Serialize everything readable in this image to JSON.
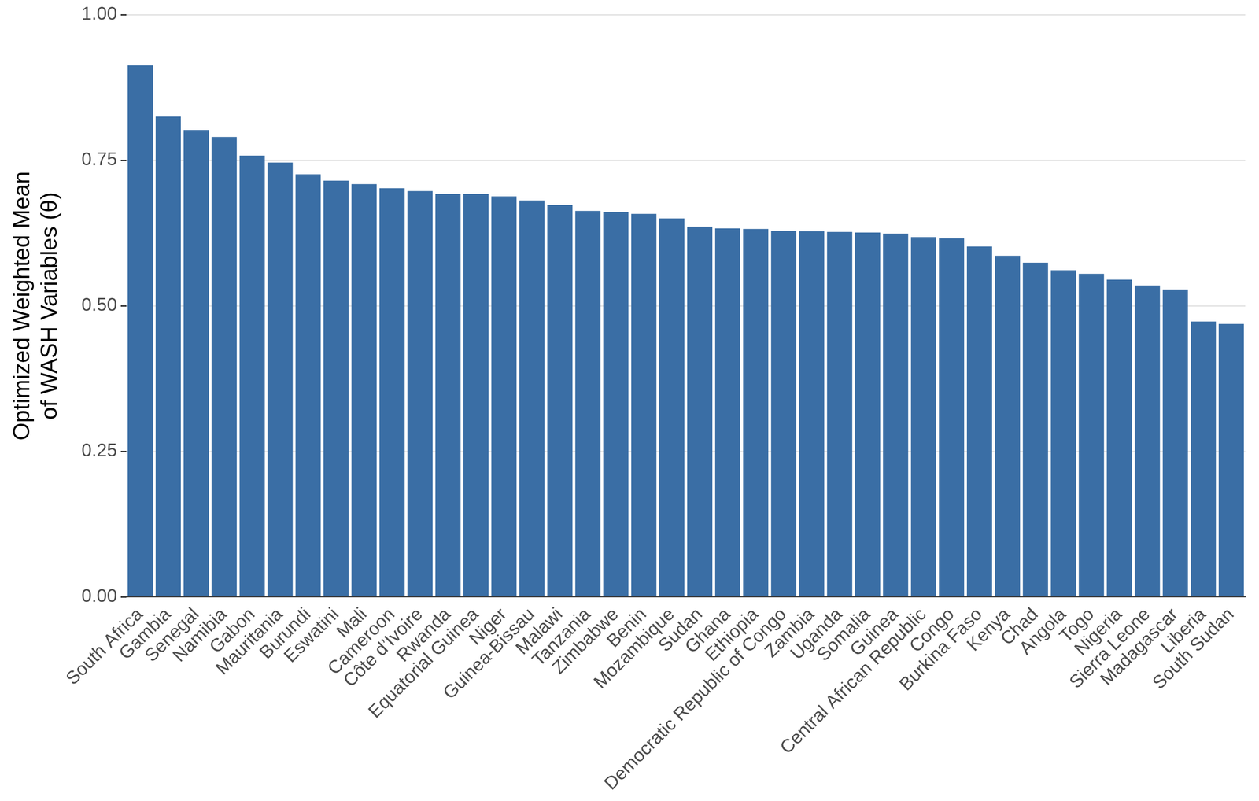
{
  "chart_data": {
    "type": "bar",
    "y_label": [
      "Optimized Weighted Mean",
      "of WASH Variables (θ)"
    ],
    "categories": [
      "South Africa",
      "Gambia",
      "Senegal",
      "Namibia",
      "Gabon",
      "Mauritania",
      "Burundi",
      "Eswatini",
      "Mali",
      "Cameroon",
      "Côte d’Ivoire",
      "Rwanda",
      "Equatorial Guinea",
      "Niger",
      "Guinea-Bissau",
      "Malawi",
      "Tanzania",
      "Zimbabwe",
      "Benin",
      "Mozambique",
      "Sudan",
      "Ghana",
      "Ethiopia",
      "Democratic Republic of Congo",
      "Zambia",
      "Uganda",
      "Somalia",
      "Guinea",
      "Central African Republic",
      "Congo",
      "Burkina Faso",
      "Kenya",
      "Chad",
      "Angola",
      "Togo",
      "Nigeria",
      "Sierra Leone",
      "Madagascar",
      "Liberia",
      "South Sudan"
    ],
    "values": [
      0.913,
      0.825,
      0.802,
      0.79,
      0.758,
      0.746,
      0.726,
      0.715,
      0.709,
      0.702,
      0.697,
      0.692,
      0.692,
      0.688,
      0.681,
      0.673,
      0.663,
      0.661,
      0.658,
      0.65,
      0.636,
      0.633,
      0.632,
      0.629,
      0.628,
      0.627,
      0.626,
      0.624,
      0.618,
      0.616,
      0.602,
      0.586,
      0.574,
      0.561,
      0.555,
      0.545,
      0.535,
      0.528,
      0.473,
      0.469
    ],
    "color": "#3a6ea5",
    "ylim": [
      0,
      1
    ],
    "yticks": [
      {
        "value": 0,
        "label": "0.00"
      },
      {
        "value": 0.25,
        "label": "0.25"
      },
      {
        "value": 0.5,
        "label": "0.50"
      },
      {
        "value": 0.75,
        "label": "0.75"
      },
      {
        "value": 1,
        "label": "1.00"
      }
    ],
    "grid": true
  }
}
